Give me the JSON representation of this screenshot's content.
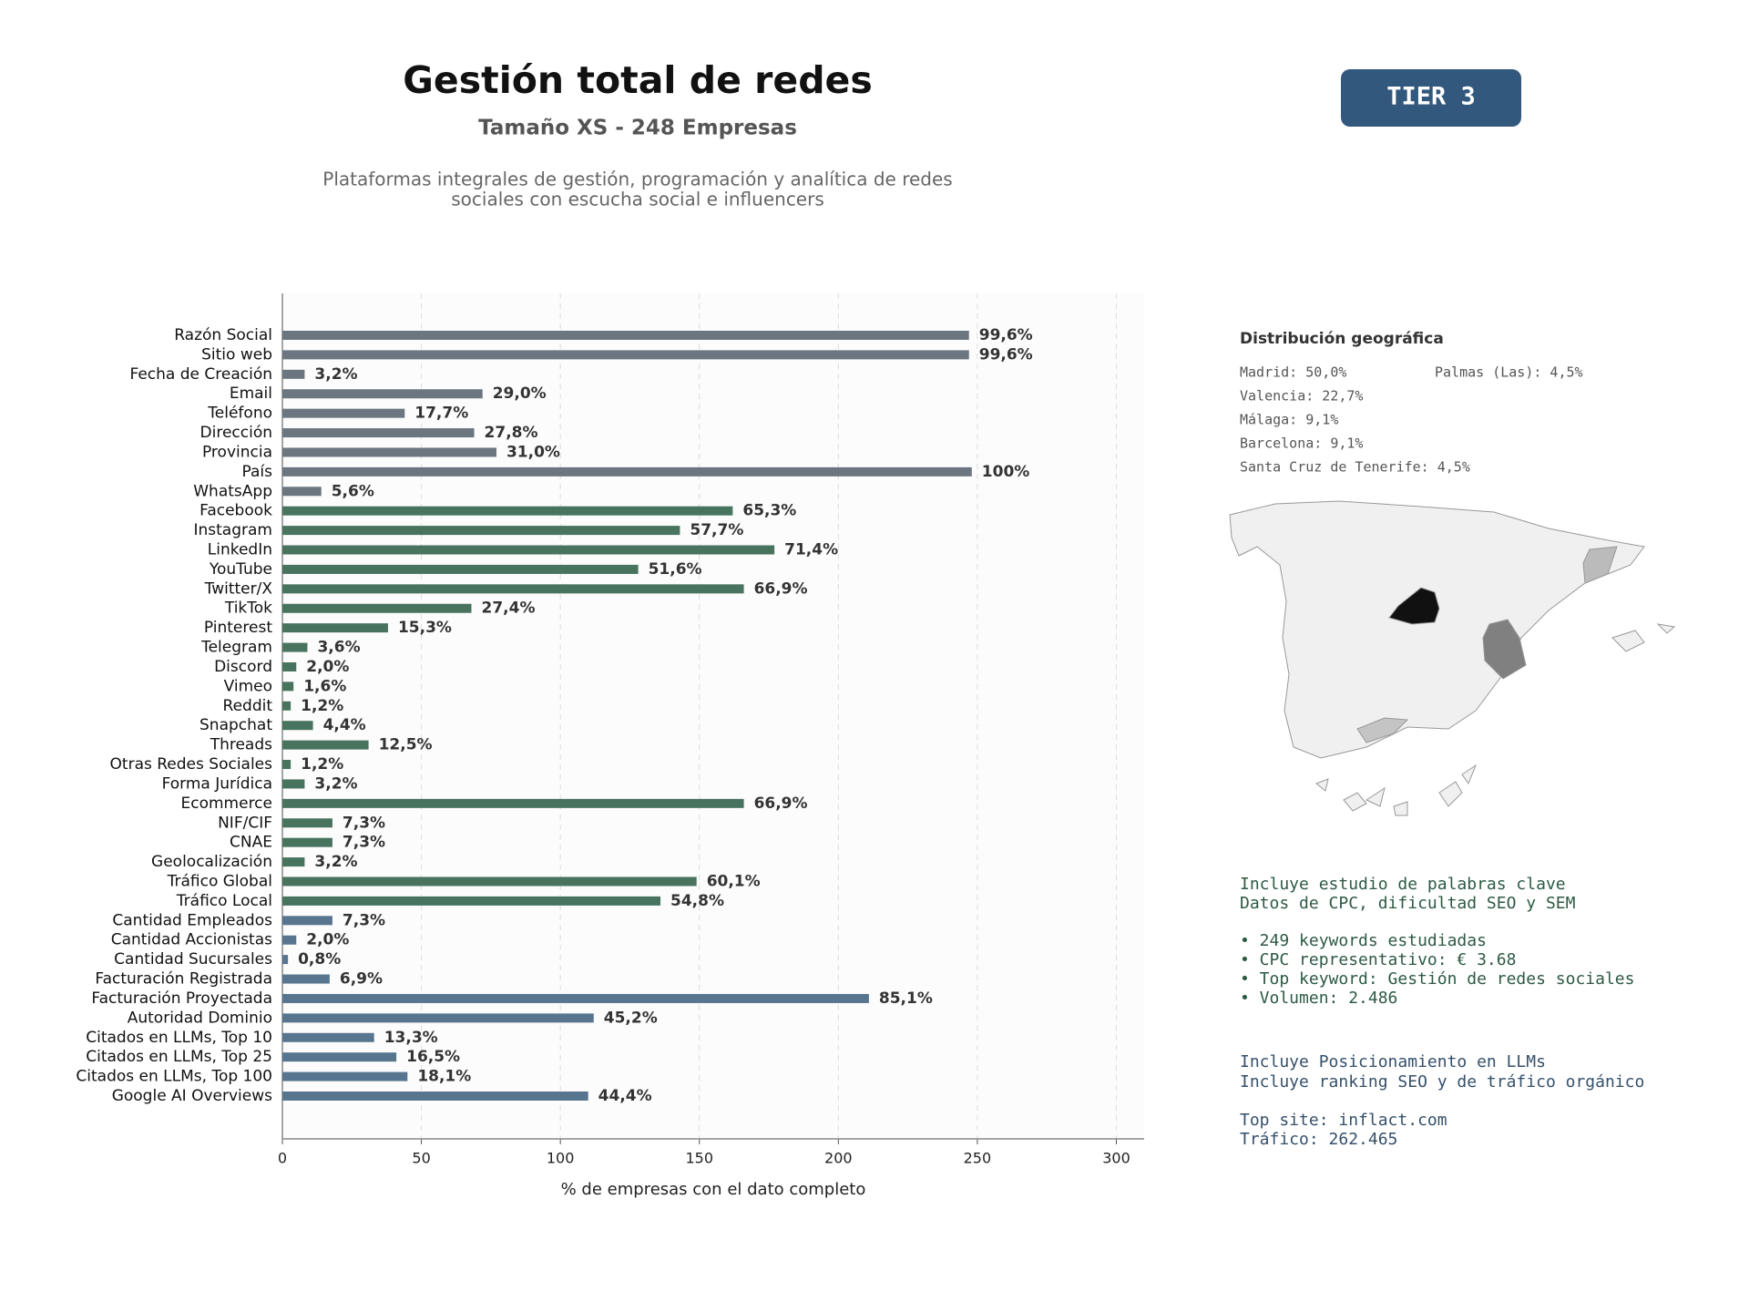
{
  "chart_data": {
    "type": "bar",
    "orientation": "horizontal",
    "title": "Gestión total de redes",
    "subtitle": "Tamaño XS - 248 Empresas",
    "description": [
      "Plataformas integrales de gestión, programación y analítica de redes",
      "sociales con escucha social e influencers"
    ],
    "categories": [
      "Razón Social",
      "Sitio web",
      "Fecha de Creación",
      "Email",
      "Teléfono",
      "Dirección",
      "Provincia",
      "País",
      "WhatsApp",
      "Facebook",
      "Instagram",
      "LinkedIn",
      "YouTube",
      "Twitter/X",
      "TikTok",
      "Pinterest",
      "Telegram",
      "Discord",
      "Vimeo",
      "Reddit",
      "Snapchat",
      "Threads",
      "Otras Redes Sociales",
      "Forma Jurídica",
      "Ecommerce",
      "NIF/CIF",
      "CNAE",
      "Geolocalización",
      "Tráfico Global",
      "Tráfico Local",
      "Cantidad Empleados",
      "Cantidad Accionistas",
      "Cantidad Sucursales",
      "Facturación Registrada",
      "Facturación Proyectada",
      "Autoridad Dominio",
      "Citados en LLMs, Top 10",
      "Citados en LLMs, Top 25",
      "Citados en LLMs, Top 100",
      "Google AI Overviews"
    ],
    "values": [
      247,
      247,
      8,
      72,
      44,
      69,
      77,
      248,
      14,
      162,
      143,
      177,
      128,
      166,
      68,
      38,
      9,
      5,
      4,
      3,
      11,
      31,
      3,
      8,
      166,
      18,
      18,
      8,
      149,
      136,
      18,
      5,
      2,
      17,
      211,
      112,
      33,
      41,
      45,
      110
    ],
    "value_labels": [
      "99,6%",
      "99,6%",
      "3,2%",
      "29,0%",
      "17,7%",
      "27,8%",
      "31,0%",
      "100%",
      "5,6%",
      "65,3%",
      "57,7%",
      "71,4%",
      "51,6%",
      "66,9%",
      "27,4%",
      "15,3%",
      "3,6%",
      "2,0%",
      "1,6%",
      "1,2%",
      "4,4%",
      "12,5%",
      "1,2%",
      "3,2%",
      "66,9%",
      "7,3%",
      "7,3%",
      "3,2%",
      "60,1%",
      "54,8%",
      "7,3%",
      "2,0%",
      "0,8%",
      "6,9%",
      "85,1%",
      "45,2%",
      "13,3%",
      "16,5%",
      "18,1%",
      "44,4%"
    ],
    "colors": [
      "#6c7680",
      "#6c7680",
      "#6c7680",
      "#6c7680",
      "#6c7680",
      "#6c7680",
      "#6c7680",
      "#6c7680",
      "#6c7680",
      "#47735f",
      "#47735f",
      "#47735f",
      "#47735f",
      "#47735f",
      "#47735f",
      "#47735f",
      "#47735f",
      "#47735f",
      "#47735f",
      "#47735f",
      "#47735f",
      "#47735f",
      "#47735f",
      "#47735f",
      "#47735f",
      "#47735f",
      "#47735f",
      "#47735f",
      "#47735f",
      "#47735f",
      "#587590",
      "#587590",
      "#587590",
      "#587590",
      "#587590",
      "#587590",
      "#587590",
      "#587590",
      "#587590",
      "#587590"
    ],
    "xlim": [
      0,
      310
    ],
    "xticks": [
      0,
      50,
      100,
      150,
      200,
      250,
      300
    ],
    "xlabel": "% de empresas con el dato completo",
    "grid": true
  },
  "badge": "TIER 3",
  "geo": {
    "title": "Distribución geográfica",
    "items": [
      "Madrid: 50,0%",
      "Palmas (Las): 4,5%",
      "Valencia: 22,7%",
      "Málaga: 9,1%",
      "Barcelona: 9,1%",
      "Santa Cruz de Tenerife: 4,5%"
    ]
  },
  "notes": [
    [
      "Incluye estudio de palabras clave",
      "Datos de CPC, dificultad SEO y SEM",
      "• 249 keywords estudiadas",
      "• CPC representativo: € 3.68",
      "• Top keyword: Gestión de redes sociales",
      "• Volumen: 2.486"
    ],
    [
      "Incluye Posicionamiento en LLMs",
      "Incluye ranking SEO y de tráfico orgánico",
      "Top site: inflact.com",
      "Tráfico: 262.465"
    ]
  ]
}
